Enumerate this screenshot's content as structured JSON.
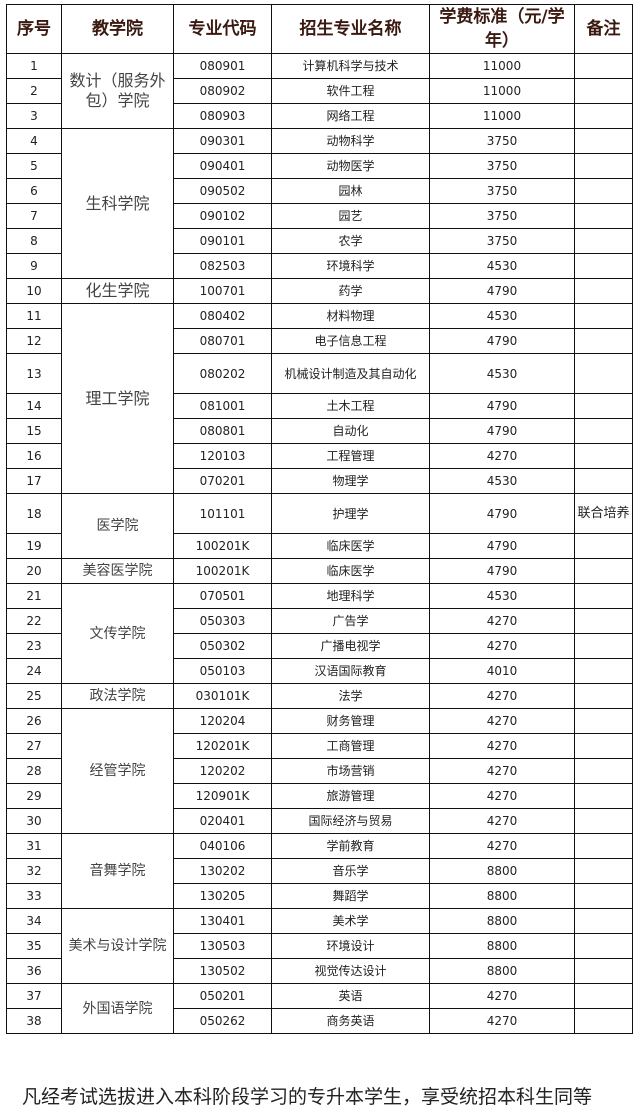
{
  "headers": [
    "序号",
    "教学院",
    "专业代码",
    "招生专业名称",
    "学费标准（元/学年）",
    "备注"
  ],
  "groups": [
    {
      "college": "数计（服务外包）学院",
      "big": true,
      "rows": [
        {
          "no": "1",
          "code": "080901",
          "name": "计算机科学与技术",
          "fee": "11000",
          "note": ""
        },
        {
          "no": "2",
          "code": "080902",
          "name": "软件工程",
          "fee": "11000",
          "note": ""
        },
        {
          "no": "3",
          "code": "080903",
          "name": "网络工程",
          "fee": "11000",
          "note": ""
        }
      ]
    },
    {
      "college": "生科学院",
      "big": true,
      "rows": [
        {
          "no": "4",
          "code": "090301",
          "name": "动物科学",
          "fee": "3750",
          "note": ""
        },
        {
          "no": "5",
          "code": "090401",
          "name": "动物医学",
          "fee": "3750",
          "note": ""
        },
        {
          "no": "6",
          "code": "090502",
          "name": "园林",
          "fee": "3750",
          "note": ""
        },
        {
          "no": "7",
          "code": "090102",
          "name": "园艺",
          "fee": "3750",
          "note": ""
        },
        {
          "no": "8",
          "code": "090101",
          "name": "农学",
          "fee": "3750",
          "note": ""
        },
        {
          "no": "9",
          "code": "082503",
          "name": "环境科学",
          "fee": "4530",
          "note": ""
        }
      ]
    },
    {
      "college": "化生学院",
      "big": true,
      "rows": [
        {
          "no": "10",
          "code": "100701",
          "name": "药学",
          "fee": "4790",
          "note": ""
        }
      ]
    },
    {
      "college": "理工学院",
      "big": true,
      "rows": [
        {
          "no": "11",
          "code": "080402",
          "name": "材料物理",
          "fee": "4530",
          "note": ""
        },
        {
          "no": "12",
          "code": "080701",
          "name": "电子信息工程",
          "fee": "4790",
          "note": ""
        },
        {
          "no": "13",
          "code": "080202",
          "name": "机械设计制造及其自动化",
          "fee": "4530",
          "note": "",
          "tall": true
        },
        {
          "no": "14",
          "code": "081001",
          "name": "土木工程",
          "fee": "4790",
          "note": ""
        },
        {
          "no": "15",
          "code": "080801",
          "name": "自动化",
          "fee": "4790",
          "note": ""
        },
        {
          "no": "16",
          "code": "120103",
          "name": "工程管理",
          "fee": "4270",
          "note": ""
        },
        {
          "no": "17",
          "code": "070201",
          "name": "物理学",
          "fee": "4530",
          "note": ""
        }
      ]
    },
    {
      "college": "医学院",
      "big": false,
      "rows": [
        {
          "no": "18",
          "code": "101101",
          "name": "护理学",
          "fee": "4790",
          "note": "联合培养",
          "tall": true
        },
        {
          "no": "19",
          "code": "100201K",
          "name": "临床医学",
          "fee": "4790",
          "note": ""
        }
      ]
    },
    {
      "college": "美容医学院",
      "big": false,
      "rows": [
        {
          "no": "20",
          "code": "100201K",
          "name": "临床医学",
          "fee": "4790",
          "note": ""
        }
      ]
    },
    {
      "college": "文传学院",
      "big": false,
      "rows": [
        {
          "no": "21",
          "code": "070501",
          "name": "地理科学",
          "fee": "4530",
          "note": ""
        },
        {
          "no": "22",
          "code": "050303",
          "name": "广告学",
          "fee": "4270",
          "note": ""
        },
        {
          "no": "23",
          "code": "050302",
          "name": "广播电视学",
          "fee": "4270",
          "note": ""
        },
        {
          "no": "24",
          "code": "050103",
          "name": "汉语国际教育",
          "fee": "4010",
          "note": ""
        }
      ]
    },
    {
      "college": "政法学院",
      "big": false,
      "rows": [
        {
          "no": "25",
          "code": "030101K",
          "name": "法学",
          "fee": "4270",
          "note": ""
        }
      ]
    },
    {
      "college": "经管学院",
      "big": false,
      "rows": [
        {
          "no": "26",
          "code": "120204",
          "name": "财务管理",
          "fee": "4270",
          "note": ""
        },
        {
          "no": "27",
          "code": "120201K",
          "name": "工商管理",
          "fee": "4270",
          "note": ""
        },
        {
          "no": "28",
          "code": "120202",
          "name": "市场营销",
          "fee": "4270",
          "note": ""
        },
        {
          "no": "29",
          "code": "120901K",
          "name": "旅游管理",
          "fee": "4270",
          "note": ""
        },
        {
          "no": "30",
          "code": "020401",
          "name": "国际经济与贸易",
          "fee": "4270",
          "note": ""
        }
      ]
    },
    {
      "college": "音舞学院",
      "big": false,
      "rows": [
        {
          "no": "31",
          "code": "040106",
          "name": "学前教育",
          "fee": "4270",
          "note": ""
        },
        {
          "no": "32",
          "code": "130202",
          "name": "音乐学",
          "fee": "8800",
          "note": ""
        },
        {
          "no": "33",
          "code": "130205",
          "name": "舞蹈学",
          "fee": "8800",
          "note": ""
        }
      ]
    },
    {
      "college": "美术与设计学院",
      "big": false,
      "rows": [
        {
          "no": "34",
          "code": "130401",
          "name": "美术学",
          "fee": "8800",
          "note": ""
        },
        {
          "no": "35",
          "code": "130503",
          "name": "环境设计",
          "fee": "8800",
          "note": ""
        },
        {
          "no": "36",
          "code": "130502",
          "name": "视觉传达设计",
          "fee": "8800",
          "note": ""
        }
      ]
    },
    {
      "college": "外国语学院",
      "big": false,
      "rows": [
        {
          "no": "37",
          "code": "050201",
          "name": "英语",
          "fee": "4270",
          "note": ""
        },
        {
          "no": "38",
          "code": "050262",
          "name": "商务英语",
          "fee": "4270",
          "note": ""
        }
      ]
    }
  ],
  "footer": "凡经考试选拔进入本科阶段学习的专升本学生，享受统招本科生同等"
}
